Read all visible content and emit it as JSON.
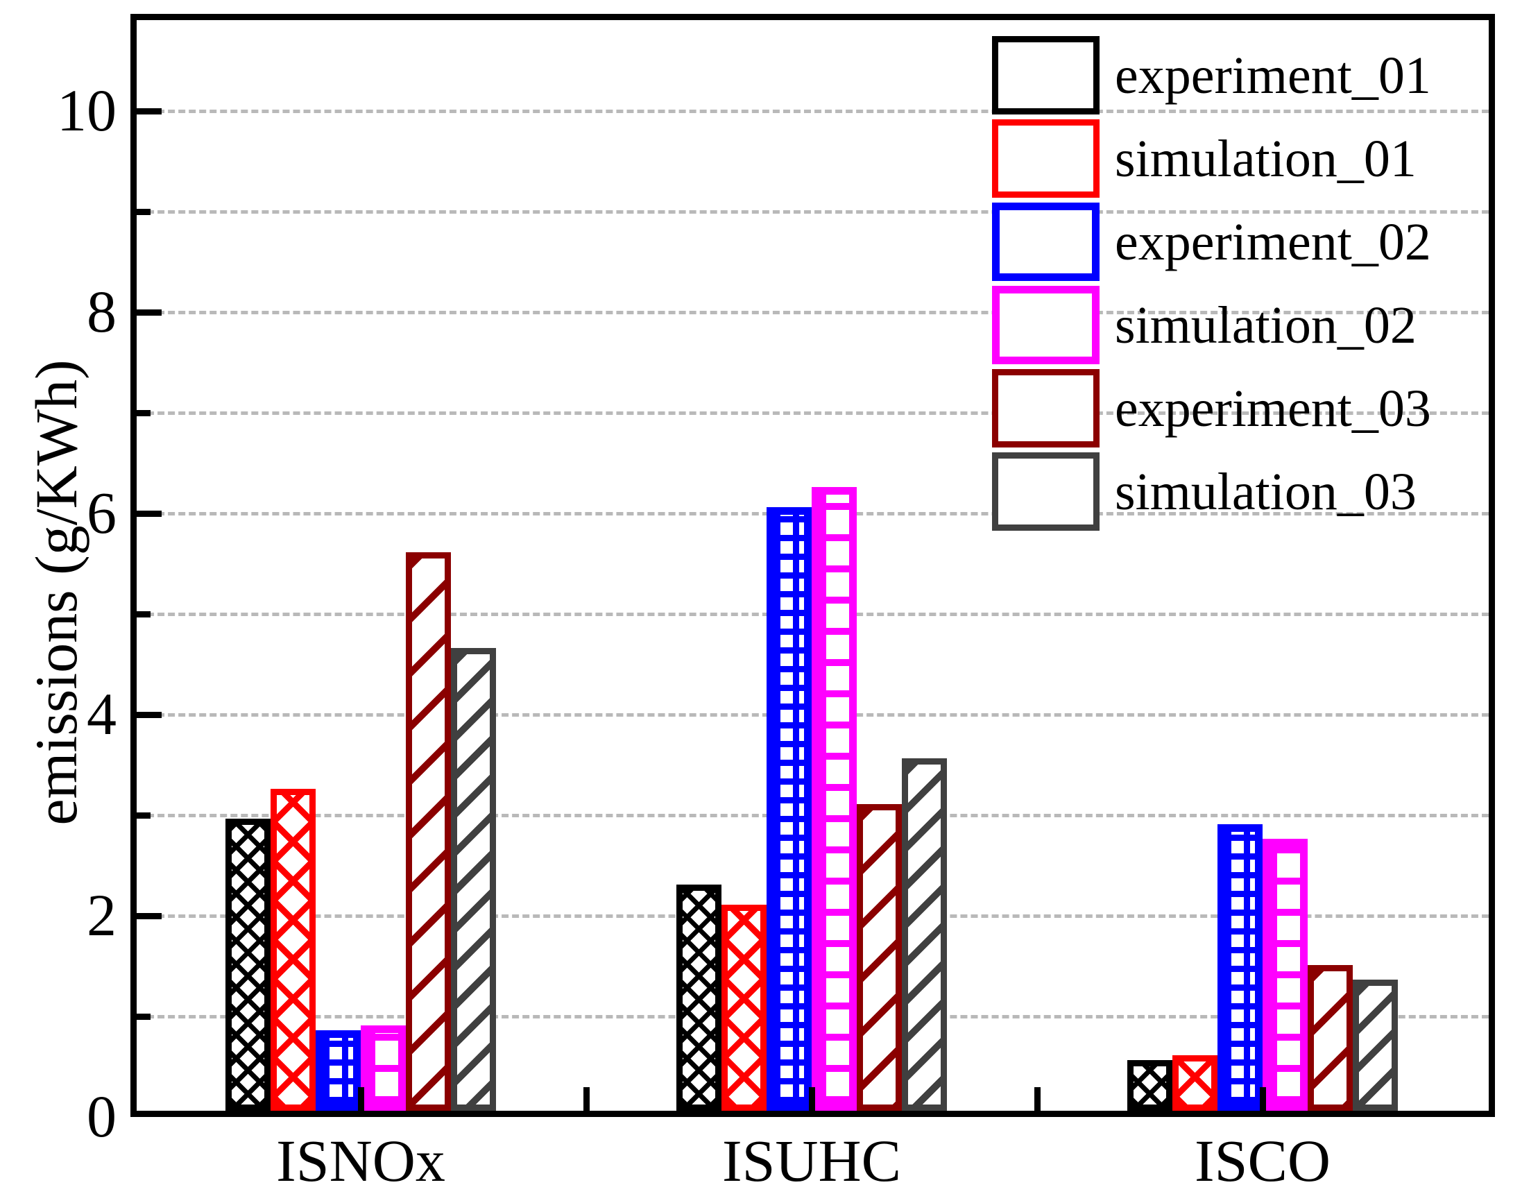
{
  "axes": {
    "y_title": "emissions (g/KWh)",
    "y_tick_labels": [
      "0",
      "2",
      "4",
      "6",
      "8",
      "10"
    ],
    "y_major_values": [
      0,
      2,
      4,
      6,
      8,
      10
    ],
    "y_minor_values": [
      1,
      3,
      5,
      7,
      9
    ],
    "x_category_labels": [
      "ISNOx",
      "ISUHC",
      "ISCO"
    ]
  },
  "chart_data": {
    "type": "bar",
    "categories": [
      "ISNOx",
      "ISUHC",
      "ISCO"
    ],
    "series": [
      {
        "name": "experiment_01",
        "color": "#000000",
        "hatch": "dense-diagonal-crosshatch",
        "values": [
          2.9,
          2.25,
          0.5
        ]
      },
      {
        "name": "simulation_01",
        "color": "#FF0000",
        "hatch": "diagonal-crosshatch",
        "values": [
          3.2,
          2.05,
          0.55
        ]
      },
      {
        "name": "experiment_02",
        "color": "#0000FF",
        "hatch": "dense-grid",
        "values": [
          0.8,
          6.0,
          2.85
        ]
      },
      {
        "name": "simulation_02",
        "color": "#FF00FF",
        "hatch": "grid",
        "values": [
          0.85,
          6.2,
          2.7
        ]
      },
      {
        "name": "experiment_03",
        "color": "#8B0000",
        "hatch": "diagonal-lines",
        "values": [
          5.55,
          3.05,
          1.45
        ]
      },
      {
        "name": "simulation_03",
        "color": "#404040",
        "hatch": "diagonal-lines",
        "values": [
          4.6,
          3.5,
          1.3
        ]
      }
    ],
    "title": "",
    "xlabel": "",
    "ylabel": "emissions (g/KWh)",
    "ylim": [
      0,
      10.95
    ],
    "grid": "horizontal-dashed-every-1",
    "grid_color": "#b9b9b9",
    "legend_position": "top-right",
    "legend_entries": [
      "experiment_01",
      "simulation_01",
      "experiment_02",
      "simulation_02",
      "experiment_03",
      "simulation_03"
    ]
  }
}
